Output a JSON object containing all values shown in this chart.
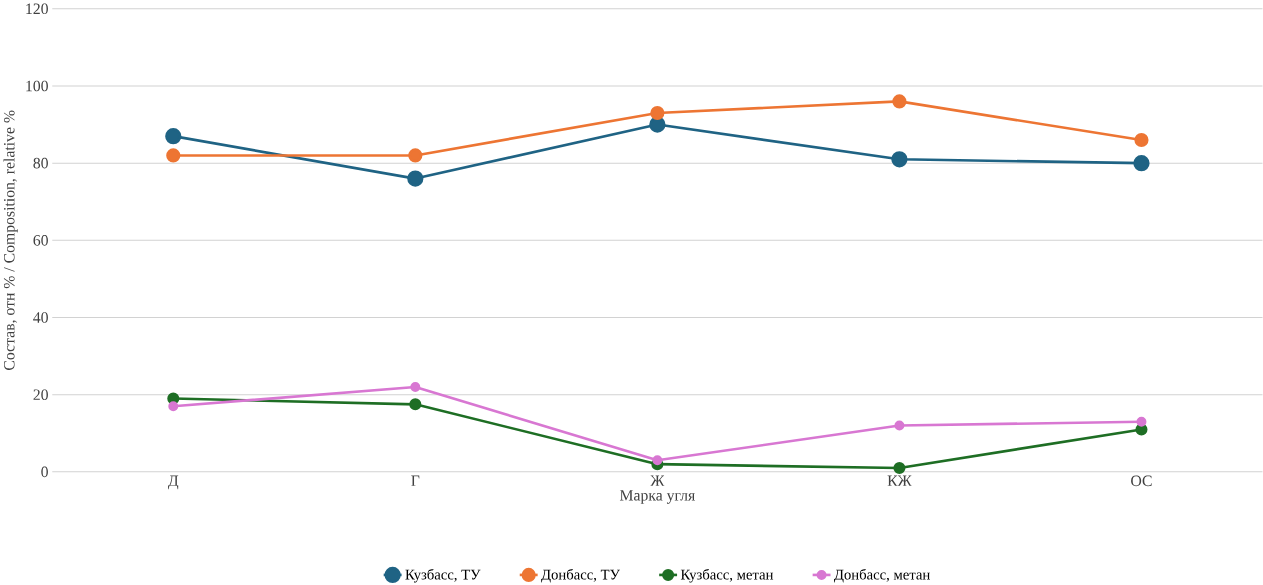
{
  "chart_data": {
    "type": "line",
    "xlabel": "Марка угля",
    "ylabel": "Состав, отн % / Composition, relative %",
    "categories": [
      "Д",
      "Г",
      "Ж",
      "КЖ",
      "ОС"
    ],
    "series": [
      {
        "name": "Кузбасс, ТУ",
        "color": "#1f6384",
        "values": [
          87,
          76,
          90,
          81,
          80
        ]
      },
      {
        "name": "Донбасс, ТУ",
        "color": "#ed7533",
        "values": [
          82,
          82,
          93,
          96,
          86
        ]
      },
      {
        "name": "Кузбасс, метан",
        "color": "#1e6e24",
        "values": [
          19,
          17.5,
          2,
          1,
          11
        ]
      },
      {
        "name": "Донбасс, метан",
        "color": "#d877d2",
        "values": [
          17,
          22,
          3,
          12,
          13
        ]
      }
    ],
    "ylim": [
      0,
      120
    ],
    "yticks": [
      0,
      20,
      40,
      60,
      80,
      100,
      120
    ],
    "grid": "y",
    "legend": "bottom",
    "marker": "circle",
    "line_style": "solid"
  }
}
